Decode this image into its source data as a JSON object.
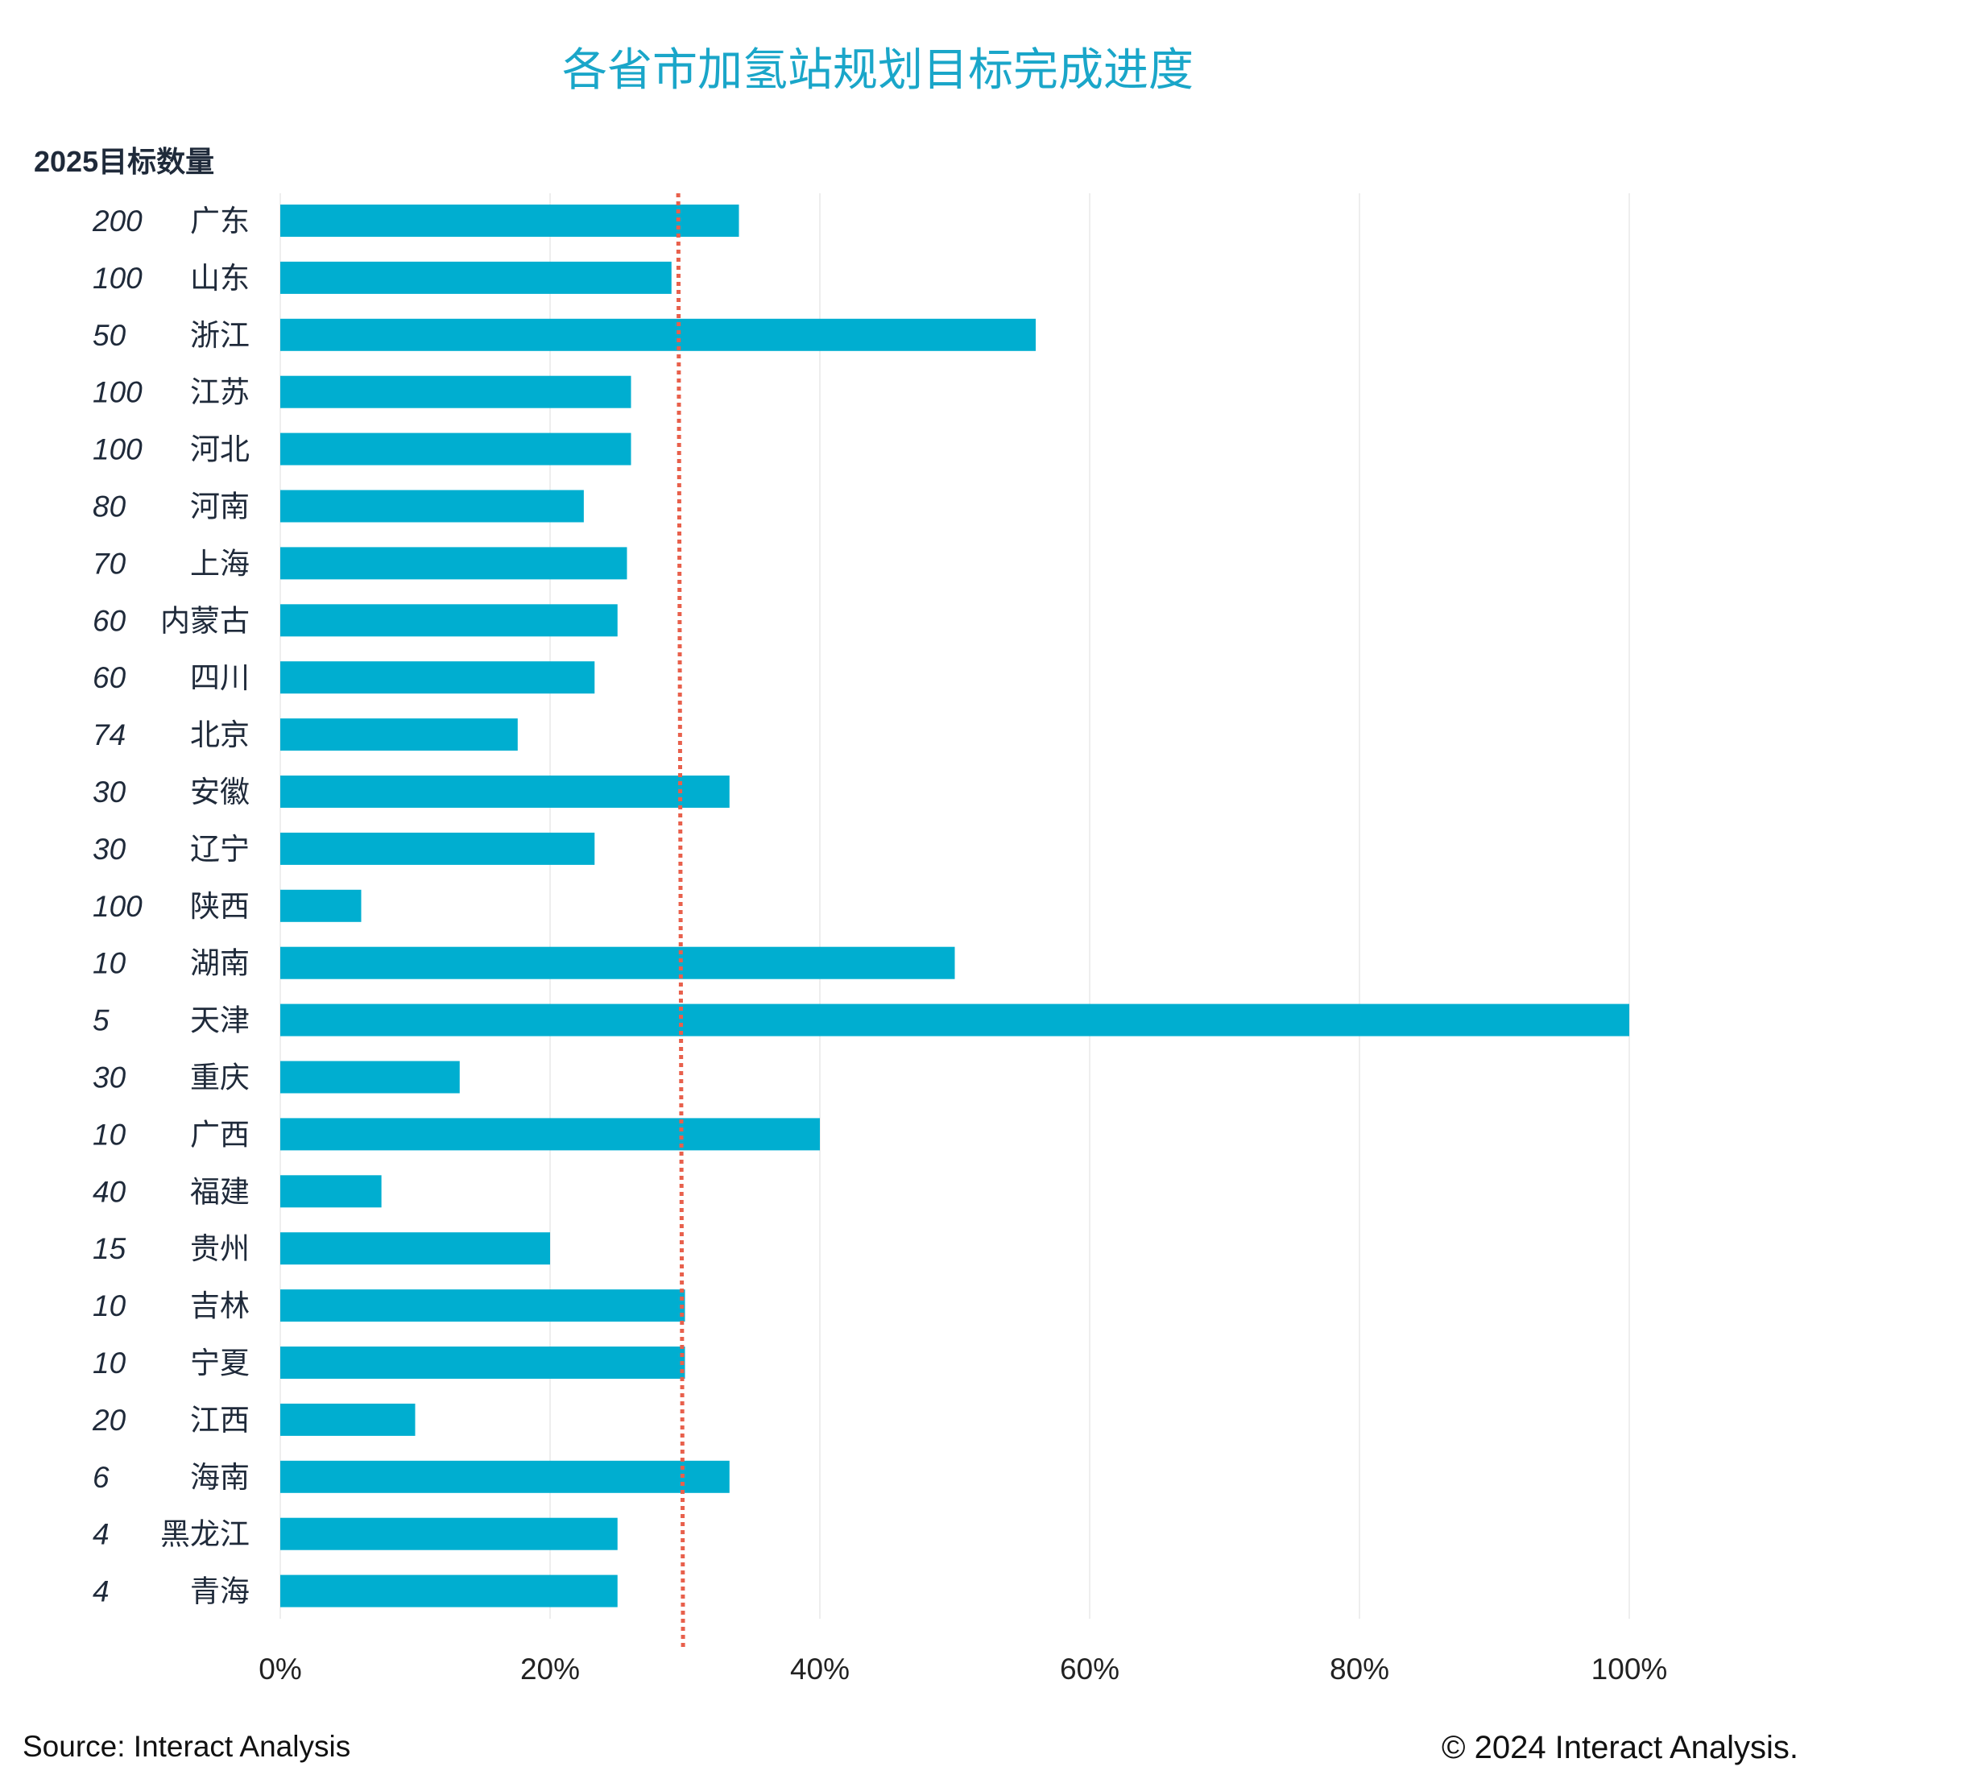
{
  "title": "各省市加氢站规划目标完成进度",
  "header_label": "2025目标数量",
  "footer": {
    "source": "Source: Interact Analysis",
    "copyright": "© 2024 Interact Analysis."
  },
  "colors": {
    "title": "#1aa6c9",
    "bar": "#00aed0",
    "reference_line": "#e8604c",
    "grid": "#eeeeee"
  },
  "chart_data": {
    "type": "bar",
    "orientation": "horizontal",
    "title": "各省市加氢站规划目标完成进度",
    "xlabel": "",
    "ylabel": "2025目标数量",
    "xlim": [
      0,
      1.0
    ],
    "x_ticks": [
      0,
      0.2,
      0.4,
      0.6,
      0.8,
      1.0
    ],
    "x_tick_labels": [
      "0%",
      "20%",
      "40%",
      "60%",
      "80%",
      "100%"
    ],
    "grid": true,
    "reference_line": {
      "value": 0.295,
      "style": "dotted"
    },
    "categories": [
      "广东",
      "山东",
      "浙江",
      "江苏",
      "河北",
      "河南",
      "上海",
      "内蒙古",
      "四川",
      "北京",
      "安徽",
      "辽宁",
      "陕西",
      "湖南",
      "天津",
      "重庆",
      "广西",
      "福建",
      "贵州",
      "吉林",
      "宁夏",
      "江西",
      "海南",
      "黑龙江",
      "青海"
    ],
    "targets": [
      "200",
      "100",
      "50",
      "100",
      "100",
      "80",
      "70",
      "60",
      "60",
      "74",
      "30",
      "30",
      "100",
      "10",
      "5",
      "30",
      "10",
      "40",
      "15",
      "10",
      "10",
      "20",
      "6",
      "4",
      "4"
    ],
    "values": [
      0.34,
      0.29,
      0.56,
      0.26,
      0.26,
      0.225,
      0.257,
      0.25,
      0.233,
      0.176,
      0.333,
      0.233,
      0.06,
      0.5,
      1.0,
      0.133,
      0.4,
      0.075,
      0.2,
      0.3,
      0.3,
      0.1,
      0.333,
      0.25,
      0.25
    ]
  }
}
